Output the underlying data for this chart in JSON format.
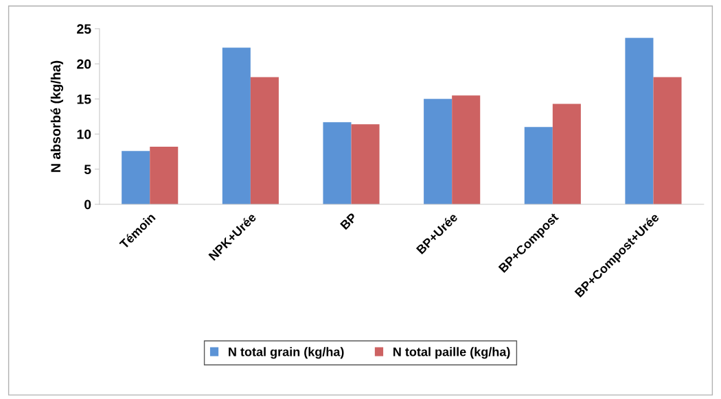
{
  "chart_data": {
    "type": "bar",
    "ylabel": "N absorbé (kg/ha)",
    "categories": [
      "Témoin",
      "NPK+Urée",
      "BP",
      "BP+Urée",
      "BP+Compost",
      "BP+Compost+Urée"
    ],
    "series": [
      {
        "name": "N total grain (kg/ha)",
        "color": "#5b93d6",
        "values": [
          7.6,
          22.3,
          11.7,
          15.0,
          11.0,
          23.7
        ]
      },
      {
        "name": "N total paille (kg/ha)",
        "color": "#cd6262",
        "values": [
          8.2,
          18.1,
          11.4,
          15.5,
          14.3,
          18.1
        ]
      }
    ],
    "ylim": [
      0,
      25
    ],
    "yticks": [
      0,
      5,
      10,
      15,
      20,
      25
    ],
    "grid": false,
    "legend": "bottom"
  }
}
